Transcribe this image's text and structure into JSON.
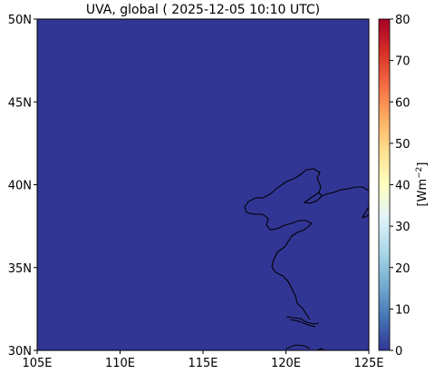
{
  "title": "UVA, global ( 2025-12-05 10:10 UTC)",
  "map": {
    "lon_range": [
      105,
      125
    ],
    "lat_range": [
      30,
      50
    ],
    "fill_color": "#313695",
    "coast_color": "#000000",
    "x_ticks": [
      "105E",
      "110E",
      "115E",
      "120E",
      "125E"
    ],
    "y_ticks": [
      "30N",
      "35N",
      "40N",
      "45N",
      "50N"
    ]
  },
  "colorbar": {
    "min": 0,
    "max": 80,
    "ticks": [
      "0",
      "10",
      "20",
      "30",
      "40",
      "50",
      "60",
      "70",
      "80"
    ],
    "label_main": "[Wm",
    "label_sup": "−2",
    "label_end": "]",
    "colors": [
      "#313695",
      "#4575b4",
      "#74add1",
      "#abd9e9",
      "#e0f3f8",
      "#ffffbf",
      "#fee090",
      "#fdae61",
      "#f46d43",
      "#d73027",
      "#a50026"
    ]
  }
}
